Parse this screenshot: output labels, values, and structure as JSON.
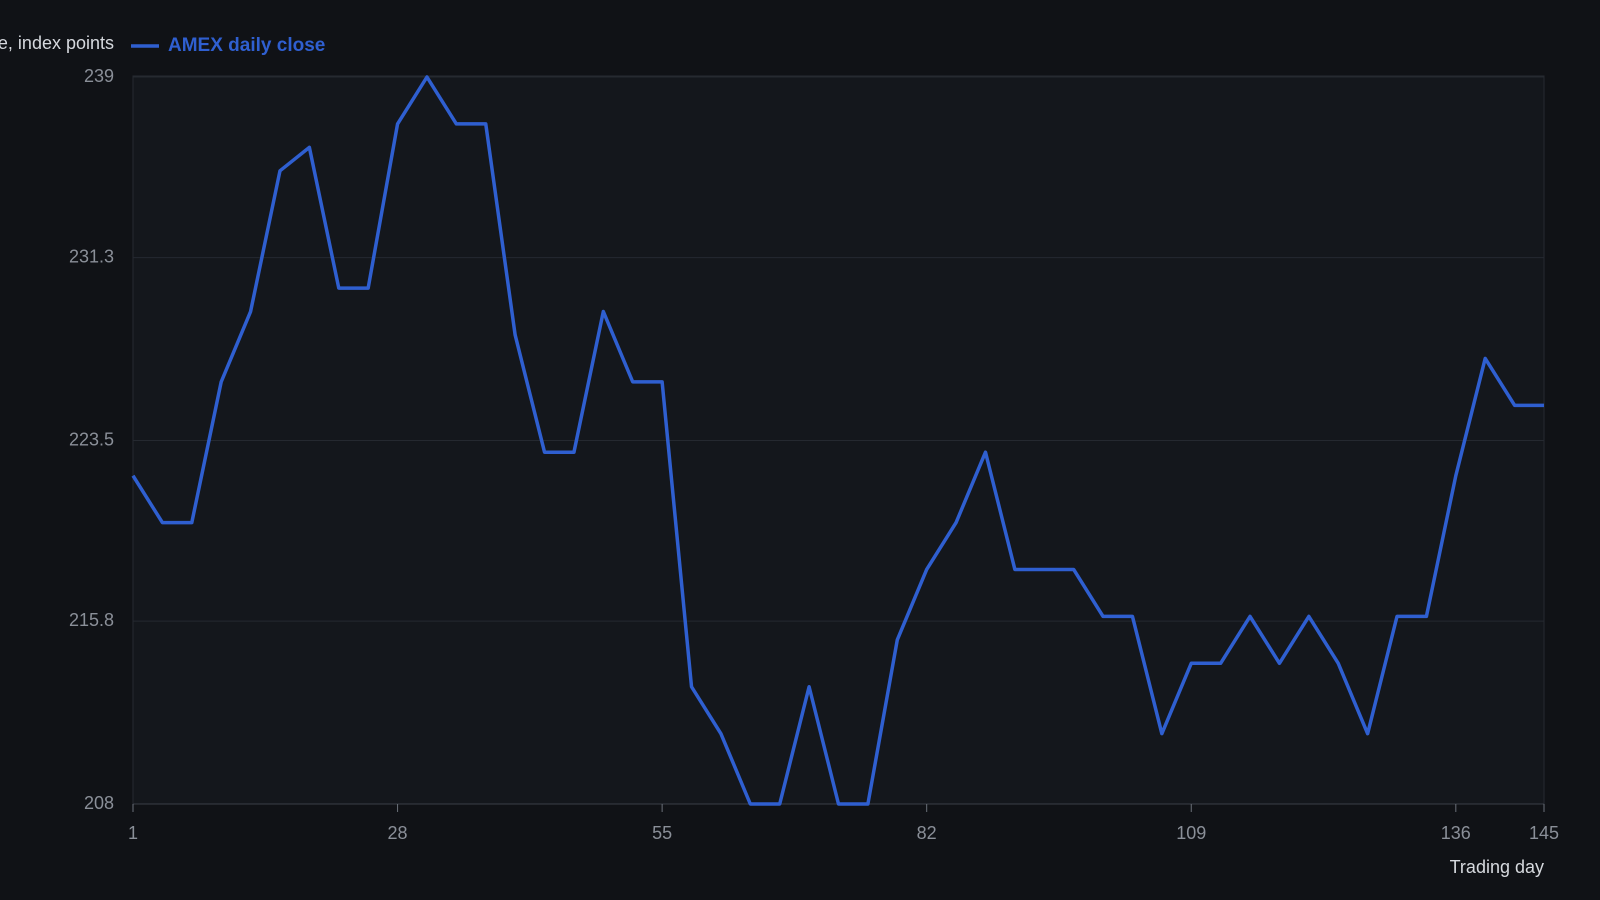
{
  "chart_data": {
    "type": "line",
    "ylabel": "Price, index points",
    "xlabel": "Trading day",
    "x": [
      1,
      4,
      7,
      10,
      13,
      16,
      19,
      22,
      25,
      28,
      31,
      34,
      37,
      40,
      43,
      46,
      49,
      52,
      55,
      58,
      61,
      64,
      67,
      70,
      73,
      76,
      79,
      82,
      85,
      88,
      91,
      94,
      97,
      100,
      103,
      106,
      109,
      112,
      115,
      118,
      121,
      124,
      127,
      130,
      133,
      136,
      139,
      142,
      145
    ],
    "series": [
      {
        "name": "AMEX daily close",
        "color": "#2f5fd0",
        "values": [
          222,
          220,
          220,
          226,
          229,
          235,
          236,
          230,
          230,
          237,
          239,
          237,
          237,
          228,
          223,
          223,
          229,
          226,
          226,
          213,
          211,
          208,
          208,
          213,
          208,
          208,
          215,
          218,
          220,
          223,
          218,
          218,
          218,
          216,
          216,
          211,
          214,
          214,
          216,
          214,
          216,
          214,
          211,
          216,
          216,
          222,
          227,
          225,
          225
        ]
      }
    ],
    "xlim": [
      1,
      145
    ],
    "xticks": [
      1,
      28,
      55,
      82,
      109,
      136,
      145
    ],
    "ylim": [
      208,
      239
    ],
    "yticks": [
      208,
      215.8,
      223.5,
      231.3,
      239
    ],
    "grid": true
  }
}
